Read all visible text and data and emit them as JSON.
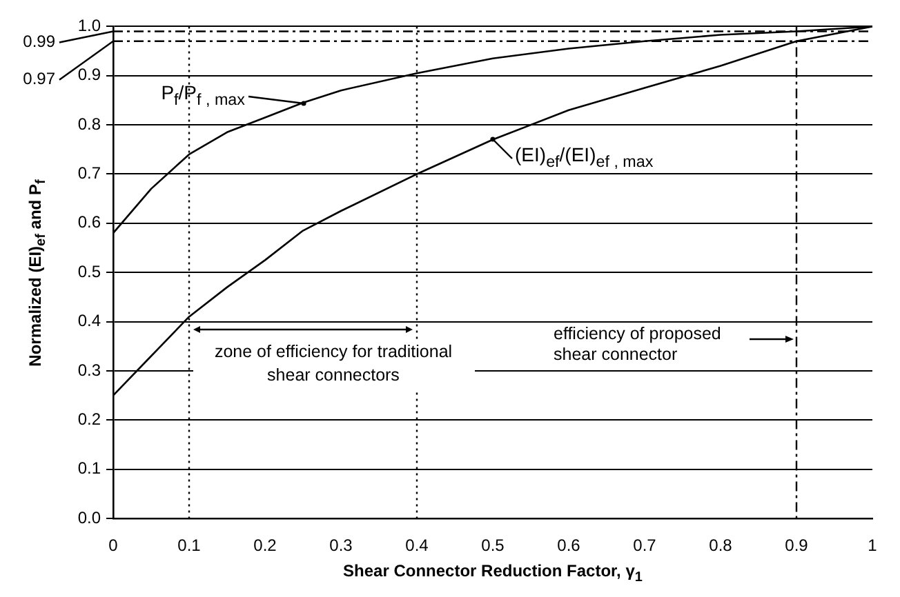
{
  "chart_data": {
    "type": "line",
    "xlabel": "Shear Connector Reduction Factor, γ$_{1}$",
    "ylabel": "Normalized (EI)$_{ef}$ and P$_{f}$",
    "series": [
      {
        "x": [
          0,
          0.05,
          0.1,
          0.15,
          0.2,
          0.25,
          0.3,
          0.4,
          0.5,
          0.6,
          0.7,
          0.8,
          0.9,
          1
        ],
        "values": [
          0.58,
          0.67,
          0.74,
          0.785,
          0.815,
          0.845,
          0.87,
          0.905,
          0.935,
          0.955,
          0.97,
          0.983,
          0.99,
          1.0
        ],
        "color": "#000000"
      },
      {
        "x": [
          0,
          0.05,
          0.1,
          0.15,
          0.2,
          0.25,
          0.3,
          0.4,
          0.5,
          0.6,
          0.7,
          0.8,
          0.9,
          1
        ],
        "values": [
          0.25,
          0.33,
          0.41,
          0.47,
          0.525,
          0.585,
          0.625,
          0.7,
          0.77,
          0.83,
          0.875,
          0.92,
          0.97,
          1.0
        ],
        "color": "#000000"
      }
    ],
    "xlim": [
      0,
      1
    ],
    "xticks": [
      0,
      0.1,
      0.2,
      0.3,
      0.4,
      0.5,
      0.6,
      0.7,
      0.8,
      0.9,
      1
    ],
    "ylim": [
      0,
      1
    ],
    "yticks": [
      {
        "value": 0,
        "label": "0.0"
      },
      0.1,
      0.2,
      0.3,
      0.4,
      0.5,
      0.6,
      0.7,
      0.8,
      0.9,
      {
        "value": 1,
        "label": "1.0"
      }
    ],
    "grid": "y",
    "legend": false,
    "marker": "none",
    "line_style": "solid",
    "ref_lines": [
      {
        "axis": "x",
        "value": 0.1,
        "line_style": "dotted"
      },
      {
        "axis": "x",
        "value": 0.4,
        "line_style": "dotted"
      },
      {
        "axis": "x",
        "value": 0.9,
        "line_style": "dashed"
      },
      {
        "axis": "y",
        "value": 0.99,
        "label": "0.99",
        "line_style": "dashed"
      },
      {
        "axis": "y",
        "value": 0.97,
        "label": "0.97",
        "line_style": "dashed"
      }
    ],
    "annotations": [
      {
        "text": "P$_{f}$/P$_{f , max}$",
        "x": 0.25,
        "y": 0.845
      },
      {
        "text": "(EI)$_{ef}$/(EI)$_{ef , max}$",
        "x": 0.5,
        "y": 0.77
      },
      "zone of efficiency for traditional shear connectors",
      "efficiency of proposed shear connector"
    ]
  }
}
